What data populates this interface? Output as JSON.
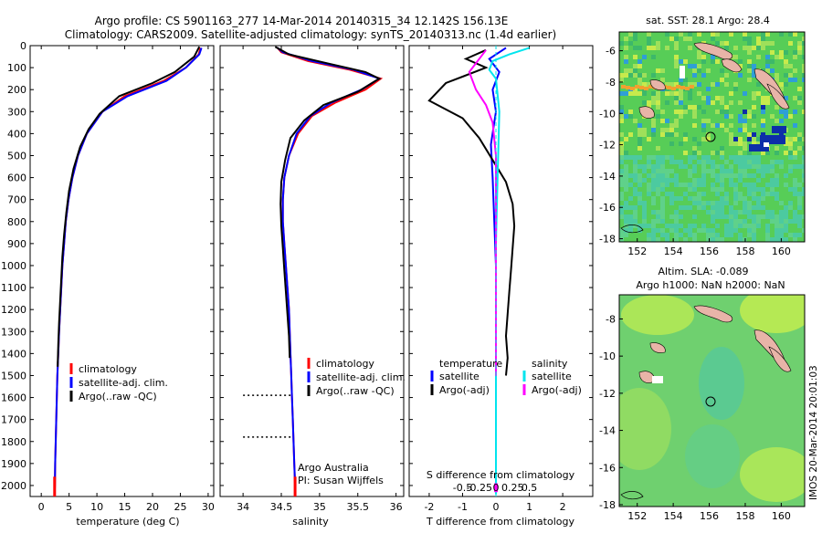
{
  "header": {
    "title_line1": "Argo profile: CS 5901163_277 14-Mar-2014 20140315_34 12.142S 156.13E",
    "title_line2": "Climatology: CARS2009. Satellite-adjusted climatology: synTS_20140313.nc (1.4d earlier)"
  },
  "colors": {
    "climatology": "#ff0000",
    "satellite": "#0000ff",
    "argo": "#000000",
    "cyan": "#00e5ee",
    "magenta": "#ff00ff",
    "land": "#e8b4a8"
  },
  "chart_data": [
    {
      "type": "line",
      "name": "temperature-profile",
      "xlabel": "temperature (deg C)",
      "ylabel": "",
      "xlim": [
        -2,
        31
      ],
      "ylim": [
        2050,
        0
      ],
      "xticks": [
        0,
        5,
        10,
        15,
        20,
        25,
        30
      ],
      "yticks": [
        0,
        100,
        200,
        300,
        400,
        500,
        600,
        700,
        800,
        900,
        1000,
        1100,
        1200,
        1300,
        1400,
        1500,
        1600,
        1700,
        1800,
        1900,
        2000
      ],
      "legend": [
        "climatology",
        "satellite-adj. clim.",
        "Argo(..raw -QC)"
      ],
      "series": [
        {
          "name": "climatology",
          "color": "#ff0000",
          "points": [
            [
              28.6,
              10
            ],
            [
              28.3,
              40
            ],
            [
              26,
              100
            ],
            [
              22,
              160
            ],
            [
              15,
              230
            ],
            [
              11,
              300
            ],
            [
              8.2,
              400
            ],
            [
              6.6,
              500
            ],
            [
              5.6,
              600
            ],
            [
              4.9,
              700
            ],
            [
              4.4,
              800
            ],
            [
              4.1,
              900
            ],
            [
              3.8,
              1000
            ],
            [
              3.6,
              1100
            ],
            [
              3.4,
              1200
            ],
            [
              3.2,
              1300
            ],
            [
              3.05,
              1400
            ],
            [
              2.9,
              1500
            ],
            [
              2.8,
              1600
            ],
            [
              2.7,
              1700
            ],
            [
              2.6,
              1800
            ],
            [
              2.5,
              1900
            ],
            [
              2.45,
              2000
            ],
            [
              2.4,
              2050
            ]
          ]
        },
        {
          "name": "satellite-adj. clim.",
          "color": "#0000ff",
          "points": [
            [
              28.8,
              10
            ],
            [
              28.4,
              40
            ],
            [
              26,
              100
            ],
            [
              22.5,
              160
            ],
            [
              15.5,
              230
            ],
            [
              11,
              300
            ],
            [
              8.2,
              400
            ],
            [
              6.6,
              500
            ],
            [
              5.6,
              600
            ],
            [
              4.9,
              700
            ],
            [
              4.4,
              800
            ],
            [
              4.1,
              900
            ],
            [
              3.8,
              1000
            ],
            [
              3.6,
              1100
            ],
            [
              3.4,
              1200
            ],
            [
              3.2,
              1300
            ],
            [
              3.05,
              1400
            ],
            [
              2.9,
              1500
            ],
            [
              2.8,
              1600
            ],
            [
              2.7,
              1700
            ],
            [
              2.6,
              1800
            ],
            [
              2.5,
              1900
            ],
            [
              2.45,
              2000
            ],
            [
              2.4,
              2050
            ]
          ]
        },
        {
          "name": "Argo(..raw -QC)",
          "color": "#000000",
          "points": [
            [
              28.4,
              5
            ],
            [
              27.5,
              50
            ],
            [
              26,
              80
            ],
            [
              24,
              120
            ],
            [
              20,
              170
            ],
            [
              14,
              230
            ],
            [
              10.5,
              310
            ],
            [
              8.5,
              380
            ],
            [
              7,
              460
            ],
            [
              5.8,
              560
            ],
            [
              5,
              660
            ],
            [
              4.5,
              760
            ],
            [
              4.1,
              860
            ],
            [
              3.8,
              960
            ],
            [
              3.6,
              1060
            ],
            [
              3.4,
              1160
            ],
            [
              3.2,
              1260
            ],
            [
              3.05,
              1360
            ],
            [
              2.95,
              1460
            ]
          ]
        }
      ]
    },
    {
      "type": "line",
      "name": "salinity-profile",
      "xlabel": "salinity",
      "xlim": [
        33.7,
        36.1
      ],
      "ylim": [
        2050,
        0
      ],
      "xticks": [
        34,
        34.5,
        35,
        35.5,
        36
      ],
      "legend": [
        "climatology",
        "satellite-adj. clim.",
        "Argo(..raw -QC)"
      ],
      "annotations": [
        "Argo Australia",
        "PI: Susan Wijffels"
      ],
      "series": [
        {
          "name": "climatology",
          "color": "#ff0000",
          "points": [
            [
              34.45,
              10
            ],
            [
              34.5,
              30
            ],
            [
              34.85,
              70
            ],
            [
              35.4,
              110
            ],
            [
              35.8,
              150
            ],
            [
              35.6,
              200
            ],
            [
              35.2,
              260
            ],
            [
              34.9,
              320
            ],
            [
              34.72,
              400
            ],
            [
              34.6,
              500
            ],
            [
              34.54,
              600
            ],
            [
              34.52,
              700
            ],
            [
              34.52,
              800
            ],
            [
              34.54,
              900
            ],
            [
              34.56,
              1000
            ],
            [
              34.58,
              1100
            ],
            [
              34.6,
              1200
            ],
            [
              34.61,
              1300
            ],
            [
              34.62,
              1400
            ],
            [
              34.63,
              1500
            ],
            [
              34.64,
              1600
            ],
            [
              34.65,
              1700
            ],
            [
              34.66,
              1800
            ],
            [
              34.67,
              1900
            ],
            [
              34.68,
              2000
            ],
            [
              34.68,
              2050
            ]
          ]
        },
        {
          "name": "satellite-adj. clim.",
          "color": "#0000ff",
          "points": [
            [
              34.45,
              10
            ],
            [
              34.52,
              30
            ],
            [
              34.9,
              70
            ],
            [
              35.45,
              110
            ],
            [
              35.78,
              150
            ],
            [
              35.55,
              200
            ],
            [
              35.15,
              260
            ],
            [
              34.88,
              320
            ],
            [
              34.7,
              400
            ],
            [
              34.6,
              500
            ],
            [
              34.54,
              600
            ],
            [
              34.52,
              700
            ],
            [
              34.52,
              800
            ],
            [
              34.54,
              900
            ],
            [
              34.56,
              1000
            ],
            [
              34.58,
              1100
            ],
            [
              34.6,
              1200
            ],
            [
              34.61,
              1300
            ],
            [
              34.62,
              1400
            ],
            [
              34.63,
              1500
            ],
            [
              34.64,
              1600
            ],
            [
              34.65,
              1700
            ],
            [
              34.66,
              1800
            ],
            [
              34.67,
              1900
            ],
            [
              34.68,
              2000
            ],
            [
              34.68,
              2050
            ]
          ]
        },
        {
          "name": "Argo(..raw -QC)",
          "color": "#000000",
          "points": [
            [
              34.42,
              5
            ],
            [
              34.6,
              40
            ],
            [
              35.1,
              80
            ],
            [
              35.6,
              120
            ],
            [
              35.78,
              150
            ],
            [
              35.5,
              210
            ],
            [
              35.05,
              270
            ],
            [
              34.8,
              340
            ],
            [
              34.62,
              420
            ],
            [
              34.55,
              520
            ],
            [
              34.5,
              620
            ],
            [
              34.49,
              720
            ],
            [
              34.5,
              820
            ],
            [
              34.52,
              920
            ],
            [
              34.54,
              1020
            ],
            [
              34.56,
              1120
            ],
            [
              34.58,
              1220
            ],
            [
              34.6,
              1320
            ],
            [
              34.61,
              1420
            ]
          ]
        },
        {
          "name": "Argo dotted ticks",
          "color": "#000000",
          "points": [
            [
              34.0,
              1590
            ],
            [
              34.65,
              1590
            ],
            [
              34.0,
              1780
            ],
            [
              34.65,
              1780
            ]
          ]
        }
      ]
    },
    {
      "type": "line",
      "name": "difference-profile",
      "xlabel": "T difference from climatology",
      "xlabel_top": "S difference from climatology",
      "xlim": [
        -2.6,
        2.9
      ],
      "ylim": [
        2050,
        0
      ],
      "xticks": [
        -2,
        -1,
        0,
        1,
        2
      ],
      "s_ticks": [
        "-0.5",
        "-0.25",
        "0",
        "0.25",
        "0.5"
      ],
      "legend_left": [
        "temperature",
        "satellite",
        "Argo(-adj)"
      ],
      "legend_right": [
        "salinity",
        "satellite",
        "Argo(-adj)"
      ],
      "series": [
        {
          "name": "T satellite",
          "color": "#0000ff",
          "points": [
            [
              0.3,
              10
            ],
            [
              -0.2,
              60
            ],
            [
              0.1,
              120
            ],
            [
              -0.1,
              200
            ],
            [
              0,
              300
            ],
            [
              -0.15,
              450
            ],
            [
              -0.1,
              600
            ],
            [
              -0.05,
              800
            ],
            [
              0,
              1000
            ],
            [
              0,
              1200
            ],
            [
              0,
              1500
            ]
          ]
        },
        {
          "name": "T Argo(-adj)",
          "color": "#000000",
          "points": [
            [
              -0.3,
              20
            ],
            [
              -0.9,
              60
            ],
            [
              -0.3,
              100
            ],
            [
              -1.5,
              170
            ],
            [
              -2,
              250
            ],
            [
              -1.0,
              330
            ],
            [
              -0.5,
              420
            ],
            [
              -0.1,
              520
            ],
            [
              0.3,
              620
            ],
            [
              0.5,
              720
            ],
            [
              0.55,
              820
            ],
            [
              0.5,
              920
            ],
            [
              0.45,
              1020
            ],
            [
              0.4,
              1120
            ],
            [
              0.35,
              1220
            ],
            [
              0.3,
              1320
            ],
            [
              0.35,
              1420
            ],
            [
              0.3,
              1500
            ]
          ]
        },
        {
          "name": "S satellite",
          "color": "#00e5ee",
          "points": [
            [
              1.0,
              10
            ],
            [
              0.4,
              40
            ],
            [
              -0.1,
              70
            ],
            [
              -0.2,
              110
            ],
            [
              0,
              150
            ],
            [
              0.1,
              300
            ],
            [
              0.05,
              600
            ],
            [
              0,
              900
            ],
            [
              0,
              1200
            ],
            [
              0,
              1500
            ],
            [
              0,
              1900
            ],
            [
              0,
              2040
            ]
          ]
        },
        {
          "name": "S Argo(-adj)",
          "color": "#ff00ff",
          "points": [
            [
              -0.3,
              20
            ],
            [
              -0.8,
              120
            ],
            [
              -0.6,
              200
            ],
            [
              -0.3,
              270
            ],
            [
              -0.1,
              350
            ],
            [
              0,
              500
            ],
            [
              0,
              800
            ],
            [
              0,
              1100
            ],
            [
              0,
              1300
            ],
            [
              0,
              1500
            ]
          ]
        }
      ]
    }
  ],
  "maps": [
    {
      "name": "sst-map",
      "title": "sat. SST: 28.1  Argo: 28.4",
      "xticks": [
        "152",
        "154",
        "156",
        "158",
        "160"
      ],
      "yticks": [
        "-6",
        "-8",
        "-10",
        "-12",
        "-14",
        "-16",
        "-18"
      ]
    },
    {
      "name": "sla-map",
      "title_line1": "Altim. SLA: -0.089",
      "title_line2": "Argo h1000: NaN h2000: NaN",
      "xticks": [
        "152",
        "154",
        "156",
        "158",
        "160"
      ],
      "yticks": [
        "-8",
        "-10",
        "-12",
        "-14",
        "-16",
        "-18"
      ]
    }
  ],
  "footer": {
    "watermark": "IMOS 20-Mar-2014 20:01:03"
  }
}
